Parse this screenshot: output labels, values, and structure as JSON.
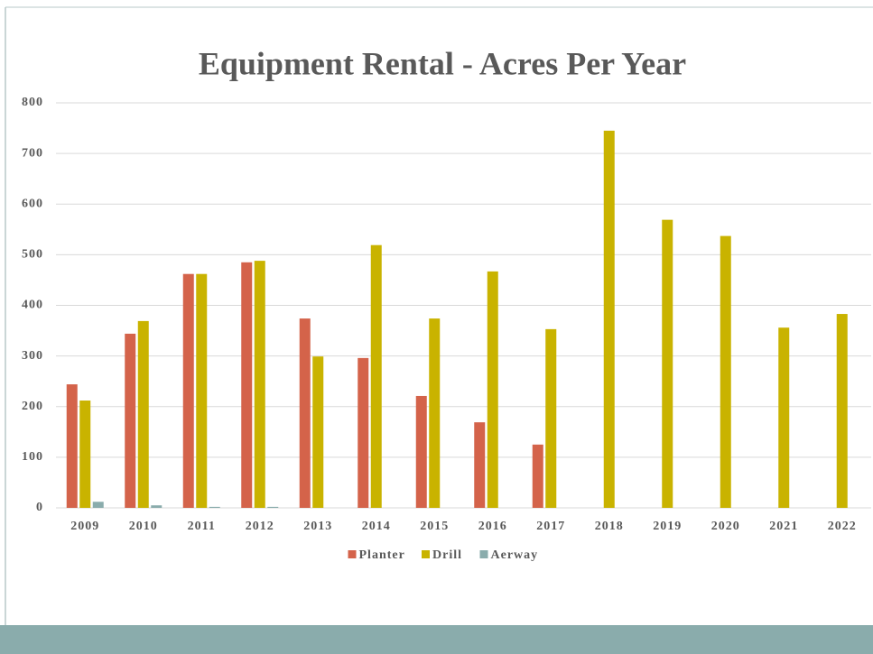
{
  "chart_data": {
    "type": "bar",
    "title": "Equipment Rental  - Acres Per Year",
    "categories": [
      "2009",
      "2010",
      "2011",
      "2012",
      "2013",
      "2014",
      "2015",
      "2016",
      "2017",
      "2018",
      "2019",
      "2020",
      "2021",
      "2022"
    ],
    "series": [
      {
        "name": "Planter",
        "color": "#d4634a",
        "values": [
          244,
          344,
          462,
          485,
          374,
          296,
          221,
          169,
          125,
          0,
          0,
          0,
          0,
          0
        ]
      },
      {
        "name": "Drill",
        "color": "#c9b300",
        "values": [
          212,
          369,
          462,
          488,
          299,
          519,
          374,
          467,
          353,
          745,
          569,
          537,
          356,
          383
        ]
      },
      {
        "name": "Aerway",
        "color": "#8aacac",
        "values": [
          12,
          5,
          2,
          2,
          0,
          0,
          0,
          0,
          0,
          0,
          0,
          0,
          0,
          0
        ]
      }
    ],
    "ylim": [
      0,
      800
    ],
    "yticks": [
      0,
      100,
      200,
      300,
      400,
      500,
      600,
      700,
      800
    ],
    "grid": true,
    "legend": "bottom"
  }
}
